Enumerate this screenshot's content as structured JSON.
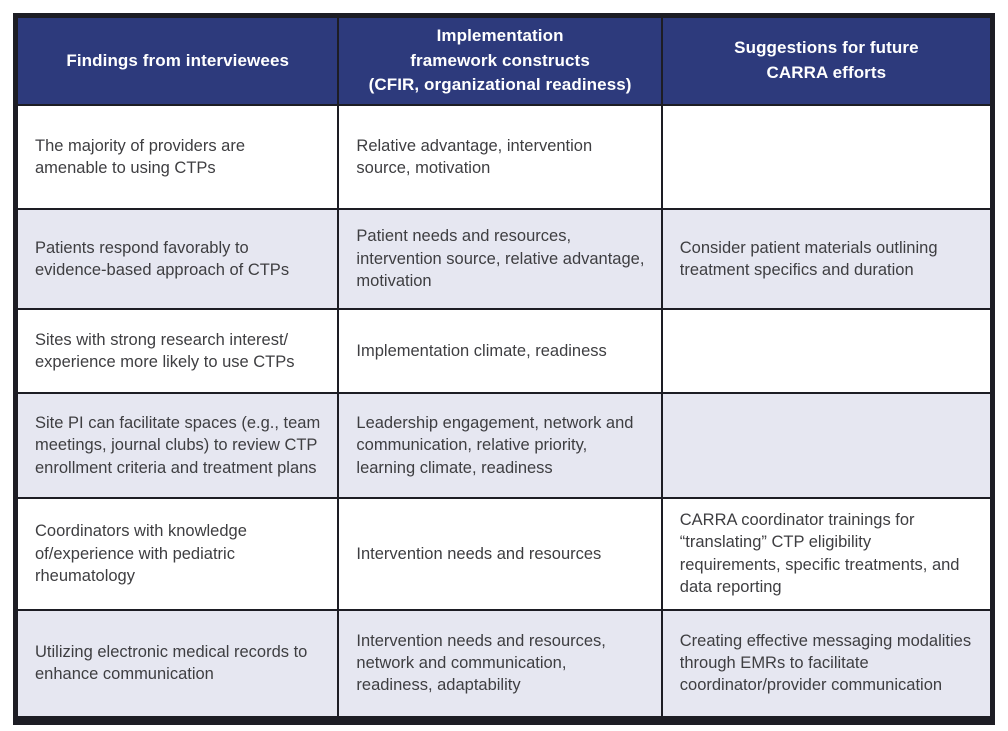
{
  "colors": {
    "header_background": "#2d3a7c",
    "header_text": "#ffffff",
    "row_stripe": "#e6e7f1",
    "row_plain": "#ffffff",
    "grid_border": "#1d1d24",
    "body_text": "#3e3e41"
  },
  "table": {
    "columns": [
      {
        "label": "Findings from interviewees"
      },
      {
        "label": "Implementation\nframework constructs\n(CFIR, organizational readiness)"
      },
      {
        "label": "Suggestions for future\nCARRA efforts"
      }
    ],
    "rows": [
      {
        "finding": "The majority of providers are amenable to using CTPs",
        "constructs": "Relative advantage, intervention source, motivation",
        "suggestion": ""
      },
      {
        "finding": "Patients respond favorably to evidence-based approach of CTPs",
        "constructs": "Patient needs and resources, intervention source, relative advantage, motivation",
        "suggestion": "Consider patient materials outlining treatment specifics and duration"
      },
      {
        "finding": "Sites with strong research interest/ experience more likely to use CTPs",
        "constructs": "Implementation climate, readiness",
        "suggestion": ""
      },
      {
        "finding": "Site PI can facilitate spaces (e.g., team meetings, journal clubs) to review CTP enrollment criteria and treatment plans",
        "constructs": "Leadership engagement, network and communication, relative priority, learning climate, readiness",
        "suggestion": ""
      },
      {
        "finding": "Coordinators with knowledge of/experience with pediatric rheumatology",
        "constructs": "Intervention needs and resources",
        "suggestion": "CARRA coordinator trainings for “translating” CTP eligibility requirements, specific treatments, and data reporting"
      },
      {
        "finding": "Utilizing electronic medical records to enhance communication",
        "constructs": "Intervention needs and resources, network and communication, readiness, adaptability",
        "suggestion": "Creating effective messaging modalities through EMRs to facilitate coordinator/provider communication"
      }
    ]
  }
}
